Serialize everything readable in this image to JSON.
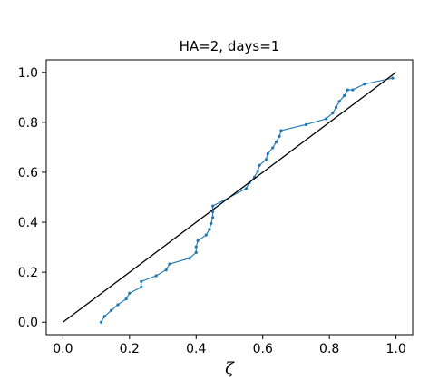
{
  "chart_data": {
    "type": "line",
    "title": "HA=2, days=1",
    "xlabel": "ζ",
    "ylabel": "",
    "xlim": [
      -0.05,
      1.05
    ],
    "ylim": [
      -0.05,
      1.05
    ],
    "xticks": [
      0.0,
      0.2,
      0.4,
      0.6,
      0.8,
      1.0
    ],
    "yticks": [
      0.0,
      0.2,
      0.4,
      0.6,
      0.8,
      1.0
    ],
    "xtick_labels": [
      "0.0",
      "0.2",
      "0.4",
      "0.6",
      "0.8",
      "1.0"
    ],
    "ytick_labels": [
      "0.0",
      "0.2",
      "0.4",
      "0.6",
      "0.8",
      "1.0"
    ],
    "grid": false,
    "series": [
      {
        "color": "#1f77b4",
        "marker": "dot",
        "x": [
          0.115,
          0.125,
          0.145,
          0.165,
          0.19,
          0.2,
          0.235,
          0.235,
          0.28,
          0.31,
          0.32,
          0.38,
          0.4,
          0.4,
          0.405,
          0.43,
          0.44,
          0.445,
          0.45,
          0.45,
          0.45,
          0.55,
          0.56,
          0.575,
          0.585,
          0.59,
          0.61,
          0.615,
          0.63,
          0.64,
          0.65,
          0.655,
          0.73,
          0.79,
          0.81,
          0.82,
          0.83,
          0.845,
          0.855,
          0.87,
          0.905,
          0.99
        ],
        "y": [
          0.0,
          0.023,
          0.047,
          0.07,
          0.093,
          0.116,
          0.14,
          0.163,
          0.186,
          0.209,
          0.233,
          0.256,
          0.279,
          0.302,
          0.326,
          0.349,
          0.372,
          0.395,
          0.419,
          0.442,
          0.465,
          0.535,
          0.558,
          0.581,
          0.605,
          0.628,
          0.651,
          0.674,
          0.698,
          0.721,
          0.744,
          0.767,
          0.791,
          0.814,
          0.837,
          0.86,
          0.884,
          0.907,
          0.93,
          0.93,
          0.953,
          0.977
        ]
      },
      {
        "color": "#000000",
        "marker": "none",
        "x": [
          0.0,
          1.0
        ],
        "y": [
          0.0,
          1.0
        ]
      }
    ]
  }
}
